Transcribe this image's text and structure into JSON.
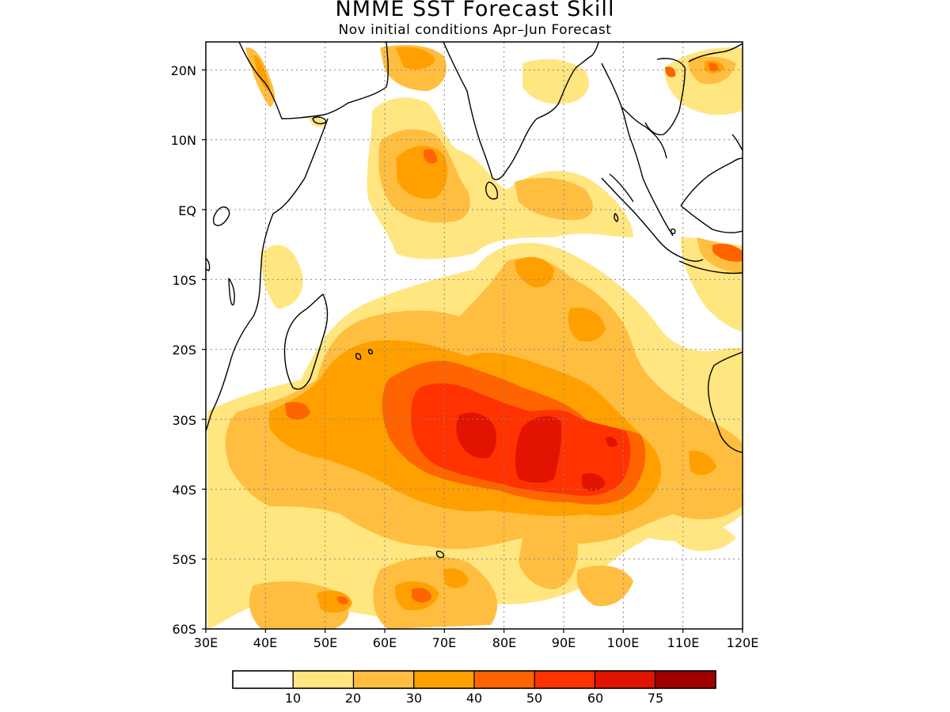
{
  "title": "NMME SST Forecast Skill",
  "subtitle": "Nov initial conditions  Apr–Jun Forecast",
  "map": {
    "lon_range": [
      30,
      120
    ],
    "lat_range": [
      -60,
      24
    ],
    "lon_ticks": [
      "30E",
      "40E",
      "50E",
      "60E",
      "70E",
      "80E",
      "90E",
      "100E",
      "110E",
      "120E"
    ],
    "lat_ticks": [
      "20N",
      "10N",
      "EQ",
      "10S",
      "20S",
      "30S",
      "40S",
      "50S",
      "60S"
    ],
    "grid": "dotted",
    "coastline_color": "#000000"
  },
  "legend": {
    "labels": [
      "10",
      "20",
      "30",
      "40",
      "50",
      "60",
      "75"
    ],
    "colors": [
      "#ffffff",
      "#ffe680",
      "#ffbe40",
      "#ffa000",
      "#ff6400",
      "#ff3200",
      "#e01400",
      "#a00000"
    ]
  },
  "colors": {
    "c10": "#ffe680",
    "c20": "#ffbe40",
    "c30": "#ffa000",
    "c40": "#ff6400",
    "c50": "#ff3200",
    "c60": "#e01400",
    "c75": "#a00000"
  }
}
